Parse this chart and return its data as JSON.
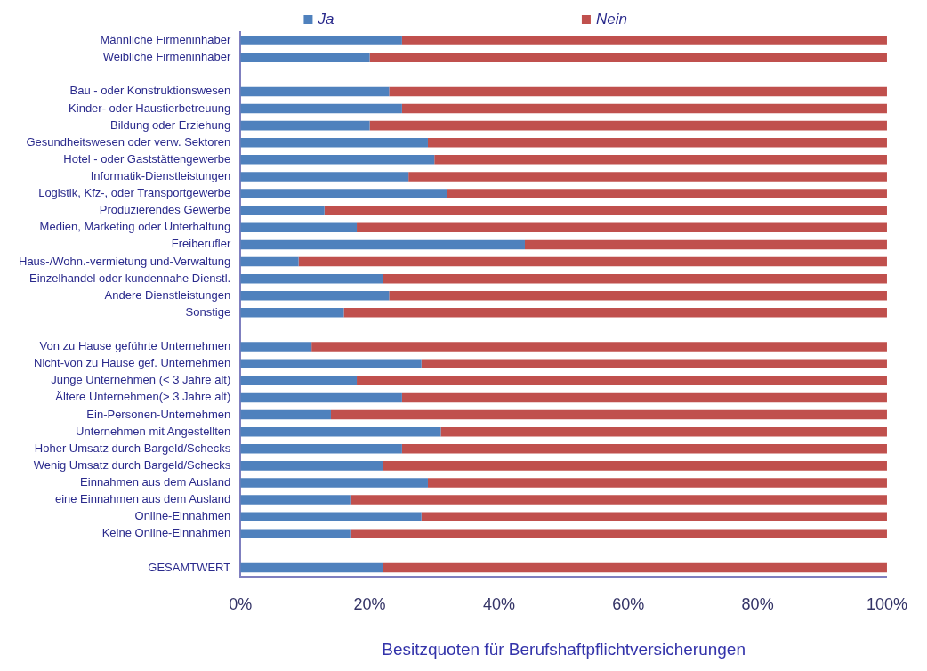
{
  "chart_data": {
    "type": "bar",
    "orientation": "horizontal",
    "stacked": true,
    "xlabel": "Besitzquoten für Berufshaftpflichtversicherungen",
    "categories": [
      "Männliche Firmeninhaber",
      "Weibliche Firmeninhaber",
      null,
      "Bau - oder Konstruktionswesen",
      "Kinder- oder Haustierbetreuung",
      "Bildung oder Erziehung",
      "Gesundheitswesen oder verw. Sektoren",
      "Hotel - oder Gaststättengewerbe",
      "Informatik-Dienstleistungen",
      "Logistik, Kfz-, oder Transportgewerbe",
      "Produzierendes Gewerbe",
      "Medien, Marketing oder Unterhaltung",
      "Freiberufler",
      "Haus-/Wohn.-vermietung und-Verwaltung",
      "Einzelhandel oder kundennahe Dienstl.",
      "Andere Dienstleistungen",
      "Sonstige",
      null,
      "Von zu Hause geführte Unternehmen",
      "Nicht-von zu Hause gef. Unternehmen",
      "Junge Unternehmen (< 3 Jahre alt)",
      "Ältere Unternehmen(> 3 Jahre alt)",
      "Ein-Personen-Unternehmen",
      "Unternehmen mit Angestellten",
      "Hoher Umsatz durch Bargeld/Schecks",
      "Wenig Umsatz durch Bargeld/Schecks",
      "Einnahmen aus dem Ausland",
      "eine Einnahmen aus dem Ausland",
      "Online-Einnahmen",
      "Keine Online-Einnahmen",
      null,
      "GESAMTWERT"
    ],
    "series": [
      {
        "name": "Ja",
        "color": "#4f81bd",
        "values": [
          25,
          20,
          null,
          23,
          25,
          20,
          29,
          30,
          26,
          32,
          13,
          18,
          44,
          9,
          22,
          23,
          16,
          null,
          11,
          28,
          18,
          25,
          14,
          31,
          25,
          22,
          29,
          17,
          28,
          17,
          null,
          22
        ]
      },
      {
        "name": "Nein",
        "color": "#c0504d",
        "values": [
          75,
          80,
          null,
          77,
          75,
          80,
          71,
          70,
          74,
          68,
          87,
          82,
          56,
          91,
          78,
          77,
          84,
          null,
          89,
          72,
          82,
          75,
          86,
          69,
          75,
          78,
          71,
          83,
          72,
          83,
          null,
          78
        ]
      }
    ],
    "xlim": [
      0,
      100
    ],
    "xticks": [
      {
        "value": 0,
        "label": "0%"
      },
      {
        "value": 20,
        "label": "20%"
      },
      {
        "value": 40,
        "label": "40%"
      },
      {
        "value": 60,
        "label": "60%"
      },
      {
        "value": 80,
        "label": "80%"
      },
      {
        "value": 100,
        "label": "100%"
      }
    ],
    "grid": false,
    "legend": "top"
  }
}
